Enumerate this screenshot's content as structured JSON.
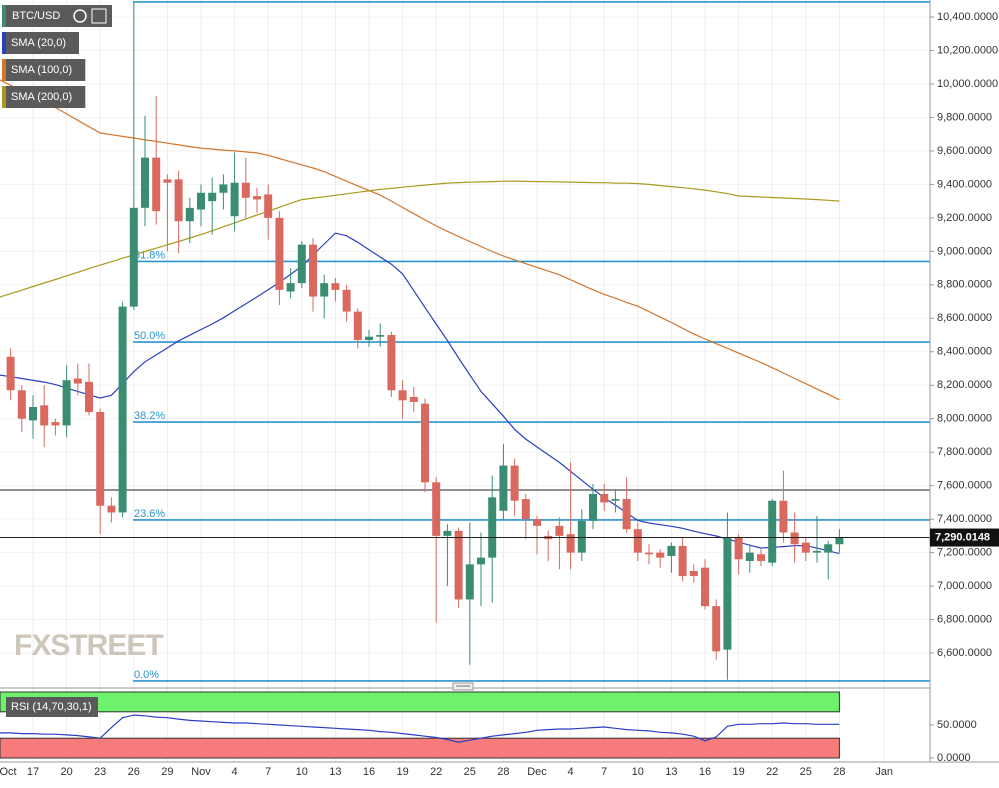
{
  "chart_data": {
    "type": "candlestick",
    "categories": [
      "Oct",
      null,
      null,
      "17",
      null,
      null,
      "20",
      null,
      null,
      "23",
      null,
      null,
      "26",
      null,
      null,
      "29",
      null,
      null,
      "Nov",
      null,
      null,
      "4",
      null,
      null,
      "7",
      null,
      null,
      "10",
      null,
      null,
      "13",
      null,
      null,
      "16",
      null,
      null,
      "19",
      null,
      null,
      "22",
      null,
      null,
      "25",
      null,
      null,
      "28",
      null,
      null,
      "Dec",
      null,
      null,
      "4",
      null,
      null,
      "7",
      null,
      null,
      "10",
      null,
      null,
      "13",
      null,
      null,
      "16",
      null,
      null,
      "19",
      null,
      null,
      "22",
      null,
      null,
      "25",
      null,
      null,
      "28",
      null,
      null,
      null,
      "Jan"
    ],
    "series": [
      {
        "name": "BTC/USD",
        "up_color": "#3a8d72",
        "down_color": "#d9695e",
        "open": [
          null,
          8370,
          8170,
          7990,
          8080,
          7980,
          7960,
          8240,
          8220,
          8040,
          7480,
          7440,
          8670,
          9260,
          9560,
          9430,
          9430,
          9180,
          9250,
          9300,
          9350,
          9210,
          9410,
          9330,
          9340,
          9200,
          8760,
          8810,
          9040,
          8730,
          8810,
          8770,
          8640,
          8470,
          8490,
          8500,
          8170,
          8130,
          8090,
          7620,
          7300,
          7330,
          6920,
          7130,
          7170,
          7450,
          7720,
          7520,
          7400,
          7300,
          7360,
          7310,
          7200,
          7390,
          7550,
          7510,
          7520,
          7340,
          7200,
          7200,
          7180,
          7240,
          7090,
          7110,
          6880,
          6620,
          7290,
          7150,
          7190,
          7140,
          7510,
          7320,
          7260,
          7200,
          7200,
          7250,
          null,
          null,
          null,
          null
        ],
        "high": [
          null,
          8420,
          8200,
          8140,
          8200,
          8000,
          8320,
          8330,
          8330,
          8060,
          7530,
          8700,
          10490,
          9810,
          9930,
          9460,
          9480,
          9320,
          9400,
          9440,
          9460,
          9590,
          9560,
          9380,
          9400,
          9240,
          8900,
          9060,
          9080,
          8860,
          8840,
          8800,
          8660,
          8530,
          8570,
          8520,
          8230,
          8190,
          8120,
          7650,
          7370,
          7350,
          7380,
          7320,
          7660,
          7850,
          7760,
          7550,
          7420,
          7330,
          7410,
          7740,
          7460,
          7610,
          7610,
          7570,
          7650,
          7380,
          7250,
          7220,
          7260,
          7290,
          7130,
          7160,
          6920,
          7440,
          7310,
          7250,
          7220,
          7520,
          7690,
          7440,
          7290,
          7420,
          7270,
          7340,
          null,
          null,
          null,
          null
        ],
        "low": [
          null,
          8110,
          7920,
          7880,
          7830,
          7900,
          7890,
          8140,
          8020,
          7310,
          7380,
          7410,
          8650,
          9150,
          9160,
          9000,
          8990,
          9050,
          9150,
          9100,
          9250,
          9120,
          9200,
          9230,
          9070,
          8680,
          8720,
          8780,
          8640,
          8600,
          8700,
          8580,
          8420,
          8430,
          8430,
          8130,
          8000,
          8040,
          7560,
          6780,
          7000,
          6870,
          6530,
          6880,
          6900,
          7400,
          7420,
          7280,
          7190,
          7150,
          7100,
          7100,
          7150,
          7340,
          7450,
          7440,
          7320,
          7150,
          7130,
          7110,
          7080,
          7030,
          7020,
          6860,
          6560,
          6440,
          7070,
          7080,
          7120,
          7120,
          7260,
          7140,
          7150,
          7140,
          7040,
          7200,
          null,
          null,
          null,
          null
        ],
        "close": [
          null,
          8170,
          8000,
          8070,
          7960,
          7960,
          8230,
          8210,
          8040,
          7480,
          7440,
          8670,
          9260,
          9560,
          9240,
          9410,
          9180,
          9260,
          9350,
          9350,
          9400,
          9410,
          9320,
          9310,
          9200,
          8770,
          8810,
          9040,
          8730,
          8810,
          8770,
          8640,
          8470,
          8490,
          8500,
          8170,
          8110,
          8100,
          7620,
          7300,
          7330,
          6920,
          7130,
          7170,
          7530,
          7720,
          7510,
          7400,
          7360,
          7280,
          7300,
          7200,
          7390,
          7550,
          7500,
          7520,
          7340,
          7200,
          7190,
          7170,
          7240,
          7060,
          7060,
          6880,
          6610,
          7290,
          7160,
          7200,
          7150,
          7510,
          7320,
          7250,
          7200,
          7210,
          7250,
          7290,
          null,
          null,
          null,
          null
        ]
      }
    ],
    "indicators": [
      {
        "name": "SMA (20,0)",
        "color": "#2b3fc4",
        "values": [
          8261,
          8251,
          8240,
          8229,
          8219,
          8204,
          8183,
          8163,
          8143,
          8124,
          8140,
          8210,
          8281,
          8340,
          8381,
          8423,
          8465,
          8499,
          8533,
          8566,
          8603,
          8645,
          8686,
          8728,
          8771,
          8815,
          8862,
          8911,
          8978,
          9044,
          9109,
          9093,
          9054,
          9010,
          8966,
          8923,
          8865,
          8765,
          8664,
          8566,
          8467,
          8363,
          8262,
          8163,
          8089,
          8015,
          7937,
          7878,
          7831,
          7785,
          7739,
          7685,
          7632,
          7578,
          7528,
          7484,
          7437,
          7392,
          7377,
          7367,
          7357,
          7345,
          7328,
          7313,
          7299,
          7281,
          7262,
          7244,
          7227,
          7232,
          7236,
          7241,
          7242,
          7227,
          7211,
          7194,
          null,
          null,
          null,
          null
        ]
      },
      {
        "name": "SMA (100,0)",
        "color": "#d2762e",
        "values": [
          10026,
          9992,
          9959,
          9925,
          9892,
          9859,
          9821,
          9783,
          9745,
          9707,
          9697,
          9687,
          9677,
          9666,
          9657,
          9646,
          9636,
          9626,
          9617,
          9611,
          9605,
          9600,
          9594,
          9588,
          9574,
          9555,
          9535,
          9517,
          9498,
          9476,
          9448,
          9419,
          9391,
          9363,
          9336,
          9300,
          9262,
          9225,
          9188,
          9152,
          9120,
          9089,
          9059,
          9029,
          8999,
          8972,
          8949,
          8926,
          8904,
          8882,
          8860,
          8830,
          8800,
          8770,
          8743,
          8720,
          8695,
          8672,
          8640,
          8607,
          8575,
          8540,
          8507,
          8476,
          8448,
          8421,
          8392,
          8364,
          8336,
          8305,
          8273,
          8240,
          8209,
          8177,
          8146,
          8113,
          null,
          null,
          null,
          null
        ]
      },
      {
        "name": "SMA (200,0)",
        "color": "#a99a1f",
        "values": [
          8726,
          8747,
          8768,
          8790,
          8811,
          8832,
          8854,
          8875,
          8897,
          8918,
          8938,
          8959,
          8979,
          8999,
          9019,
          9039,
          9059,
          9080,
          9100,
          9123,
          9147,
          9170,
          9194,
          9217,
          9240,
          9263,
          9287,
          9309,
          9318,
          9326,
          9335,
          9344,
          9353,
          9361,
          9370,
          9376,
          9383,
          9389,
          9396,
          9402,
          9408,
          9411,
          9413,
          9415,
          9417,
          9419,
          9420,
          9418,
          9417,
          9416,
          9415,
          9414,
          9412,
          9411,
          9410,
          9408,
          9407,
          9405,
          9400,
          9393,
          9387,
          9380,
          9374,
          9366,
          9356,
          9345,
          9331,
          9328,
          9325,
          9322,
          9319,
          9316,
          9313,
          9309,
          9305,
          9300,
          null,
          null,
          null,
          null
        ]
      }
    ],
    "fibonacci": [
      {
        "value": 10490,
        "label": null
      },
      {
        "value": 8940,
        "label": "61.8%"
      },
      {
        "value": 8458,
        "label": "50.0%"
      },
      {
        "value": 7980,
        "label": "38.2%"
      },
      {
        "value": 7395,
        "label": "23.6%"
      },
      {
        "value": 6433,
        "label": "0.0%"
      }
    ],
    "levels": [
      7574
    ],
    "last_price": {
      "value": 7290.0148,
      "label": "7,290.0148"
    },
    "ylim": [
      6400,
      10500
    ],
    "yticks": [
      {
        "value": 10400,
        "label": "10,400.0000"
      },
      {
        "value": 10200,
        "label": "10,200.0000"
      },
      {
        "value": 10000,
        "label": "10,000.0000"
      },
      {
        "value": 9800,
        "label": "9,800.0000"
      },
      {
        "value": 9600,
        "label": "9,600.0000"
      },
      {
        "value": 9400,
        "label": "9,400.0000"
      },
      {
        "value": 9200,
        "label": "9,200.0000"
      },
      {
        "value": 9000,
        "label": "9,000.0000"
      },
      {
        "value": 8800,
        "label": "8,800.0000"
      },
      {
        "value": 8600,
        "label": "8,600.0000"
      },
      {
        "value": 8400,
        "label": "8,400.0000"
      },
      {
        "value": 8200,
        "label": "8,200.0000"
      },
      {
        "value": 8000,
        "label": "8,000.0000"
      },
      {
        "value": 7800,
        "label": "7,800.0000"
      },
      {
        "value": 7600,
        "label": "7,600.0000"
      },
      {
        "value": 7400,
        "label": "7,400.0000"
      },
      {
        "value": 7200,
        "label": "7,200.0000"
      },
      {
        "value": 7000,
        "label": "7,000.0000"
      },
      {
        "value": 6800,
        "label": "6,800.0000"
      },
      {
        "value": 6600,
        "label": "6,600.0000"
      }
    ],
    "grid": true,
    "rsi": {
      "name": "RSI (14,70,30,1)",
      "color": "#2b3fc4",
      "upper": 70,
      "lower": 30,
      "ylim": [
        0,
        100
      ],
      "yticks": [
        {
          "value": 50,
          "label": "50.0000"
        },
        {
          "value": 0,
          "label": "0.0000"
        }
      ],
      "values": [
        38,
        38,
        37,
        37,
        36,
        36,
        35,
        34,
        32,
        30,
        46,
        61,
        65,
        64,
        62,
        61,
        59,
        57,
        56,
        55,
        54,
        53,
        53,
        52,
        51,
        50,
        49,
        48,
        47,
        46,
        45,
        44,
        43,
        42,
        40,
        39,
        37,
        35,
        33,
        31,
        28,
        24,
        27,
        30,
        33,
        35,
        37,
        39,
        42,
        43,
        44,
        44,
        45,
        46,
        47,
        45,
        43,
        42,
        41,
        39,
        38,
        36,
        33,
        26,
        32,
        48,
        51,
        51,
        52,
        52,
        53,
        52,
        52,
        51,
        51,
        51,
        null,
        null,
        null,
        null
      ]
    },
    "watermark": "FXSTREET"
  }
}
